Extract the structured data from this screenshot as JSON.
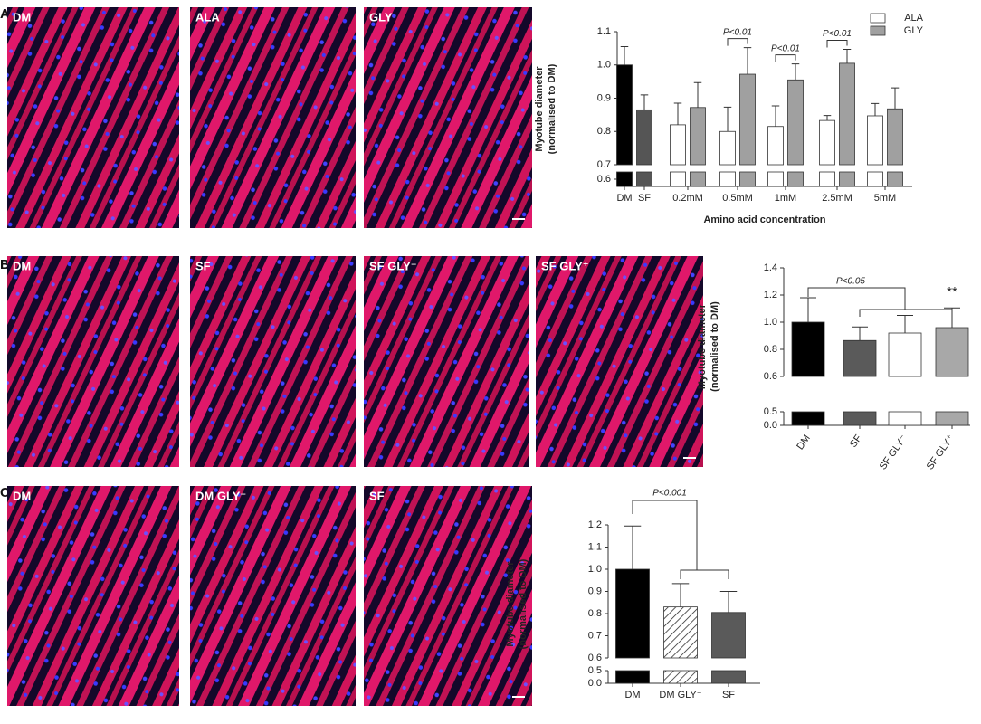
{
  "panels": [
    {
      "label": "A",
      "images": [
        "DM",
        "ALA",
        "GLY"
      ]
    },
    {
      "label": "B",
      "images": [
        "DM",
        "SF",
        "SF GLY⁻",
        "SF GLY⁺"
      ]
    },
    {
      "label": "C",
      "images": [
        "DM",
        "DM GLY⁻",
        "SF"
      ]
    }
  ],
  "chart_data": [
    {
      "type": "bar",
      "ylabel": [
        "Myotube diameter",
        "(normalised to  DM)"
      ],
      "xlabel": "Amino acid concentration",
      "categories": [
        "DM",
        "SF",
        "0.2mM",
        "0.5mM",
        "1mM",
        "2.5mM",
        "5mM"
      ],
      "values": [
        1.0,
        0.865,
        null,
        null,
        null,
        null,
        null
      ],
      "errors": [
        0.055,
        0.045,
        null,
        null,
        null,
        null,
        null
      ],
      "colors": [
        "#000000",
        "#555555",
        null,
        null,
        null,
        null,
        null
      ],
      "series": [
        {
          "name": "ALA",
          "color": "#ffffff",
          "values": [
            null,
            null,
            0.82,
            0.8,
            0.815,
            0.833,
            0.847
          ],
          "errors": [
            null,
            null,
            0.065,
            0.073,
            0.062,
            0.015,
            0.037
          ]
        },
        {
          "name": "GLY",
          "color": "#a0a0a0",
          "values": [
            null,
            null,
            0.872,
            0.972,
            0.955,
            1.005,
            0.868
          ],
          "errors": [
            null,
            null,
            0.075,
            0.08,
            0.048,
            0.042,
            0.063
          ]
        }
      ],
      "ylim": [
        0.7,
        1.1
      ],
      "yticks": [
        0.7,
        0.8,
        0.9,
        {
          "value": 1.0,
          "label": "1.0"
        },
        1.1
      ],
      "ylim_lower": [
        0.55,
        0.65
      ],
      "yticks_lower": [
        0.6
      ],
      "legend": "upper right",
      "annotations": [
        "P<0.01",
        "P<0.01",
        "P<0.01"
      ]
    },
    {
      "type": "bar",
      "ylabel": [
        "Myotube diameter",
        "(normalised to DM)"
      ],
      "categories": [
        "DM",
        "SF",
        "SF GLY⁻",
        "SF GLY⁺"
      ],
      "values": [
        1.0,
        0.865,
        0.92,
        0.96
      ],
      "errors": [
        0.18,
        0.1,
        0.13,
        0.145
      ],
      "colors": [
        "#000000",
        "#5a5a5a",
        "#ffffff",
        "#a8a8a8"
      ],
      "ylim": [
        0.6,
        1.4
      ],
      "yticks": [
        0.6,
        0.8,
        {
          "value": 1.0,
          "label": "1.0"
        },
        1.2,
        1.4
      ],
      "ylim_lower": [
        0.0,
        0.5
      ],
      "yticks_lower": [
        {
          "value": 0.0,
          "label": "0.0"
        },
        0.5
      ],
      "annotations": [
        "P<0.05",
        "**"
      ]
    },
    {
      "type": "bar",
      "ylabel": [
        "Myotube diameter",
        "(normalised to DM)"
      ],
      "categories": [
        "DM",
        "DM GLY⁻",
        "SF"
      ],
      "values": [
        1.0,
        0.83,
        0.805
      ],
      "errors": [
        0.195,
        0.105,
        0.095
      ],
      "colors": [
        "#000000",
        "hatch",
        "#5a5a5a"
      ],
      "ylim": [
        0.6,
        1.2
      ],
      "yticks": [
        0.6,
        0.7,
        0.8,
        0.9,
        {
          "value": 1.0,
          "label": "1.0"
        },
        1.1,
        1.2
      ],
      "ylim_lower": [
        0.0,
        0.5
      ],
      "yticks_lower": [
        {
          "value": 0.0,
          "label": "0.0"
        },
        0.5
      ],
      "annotations": [
        "P<0.001"
      ]
    }
  ]
}
